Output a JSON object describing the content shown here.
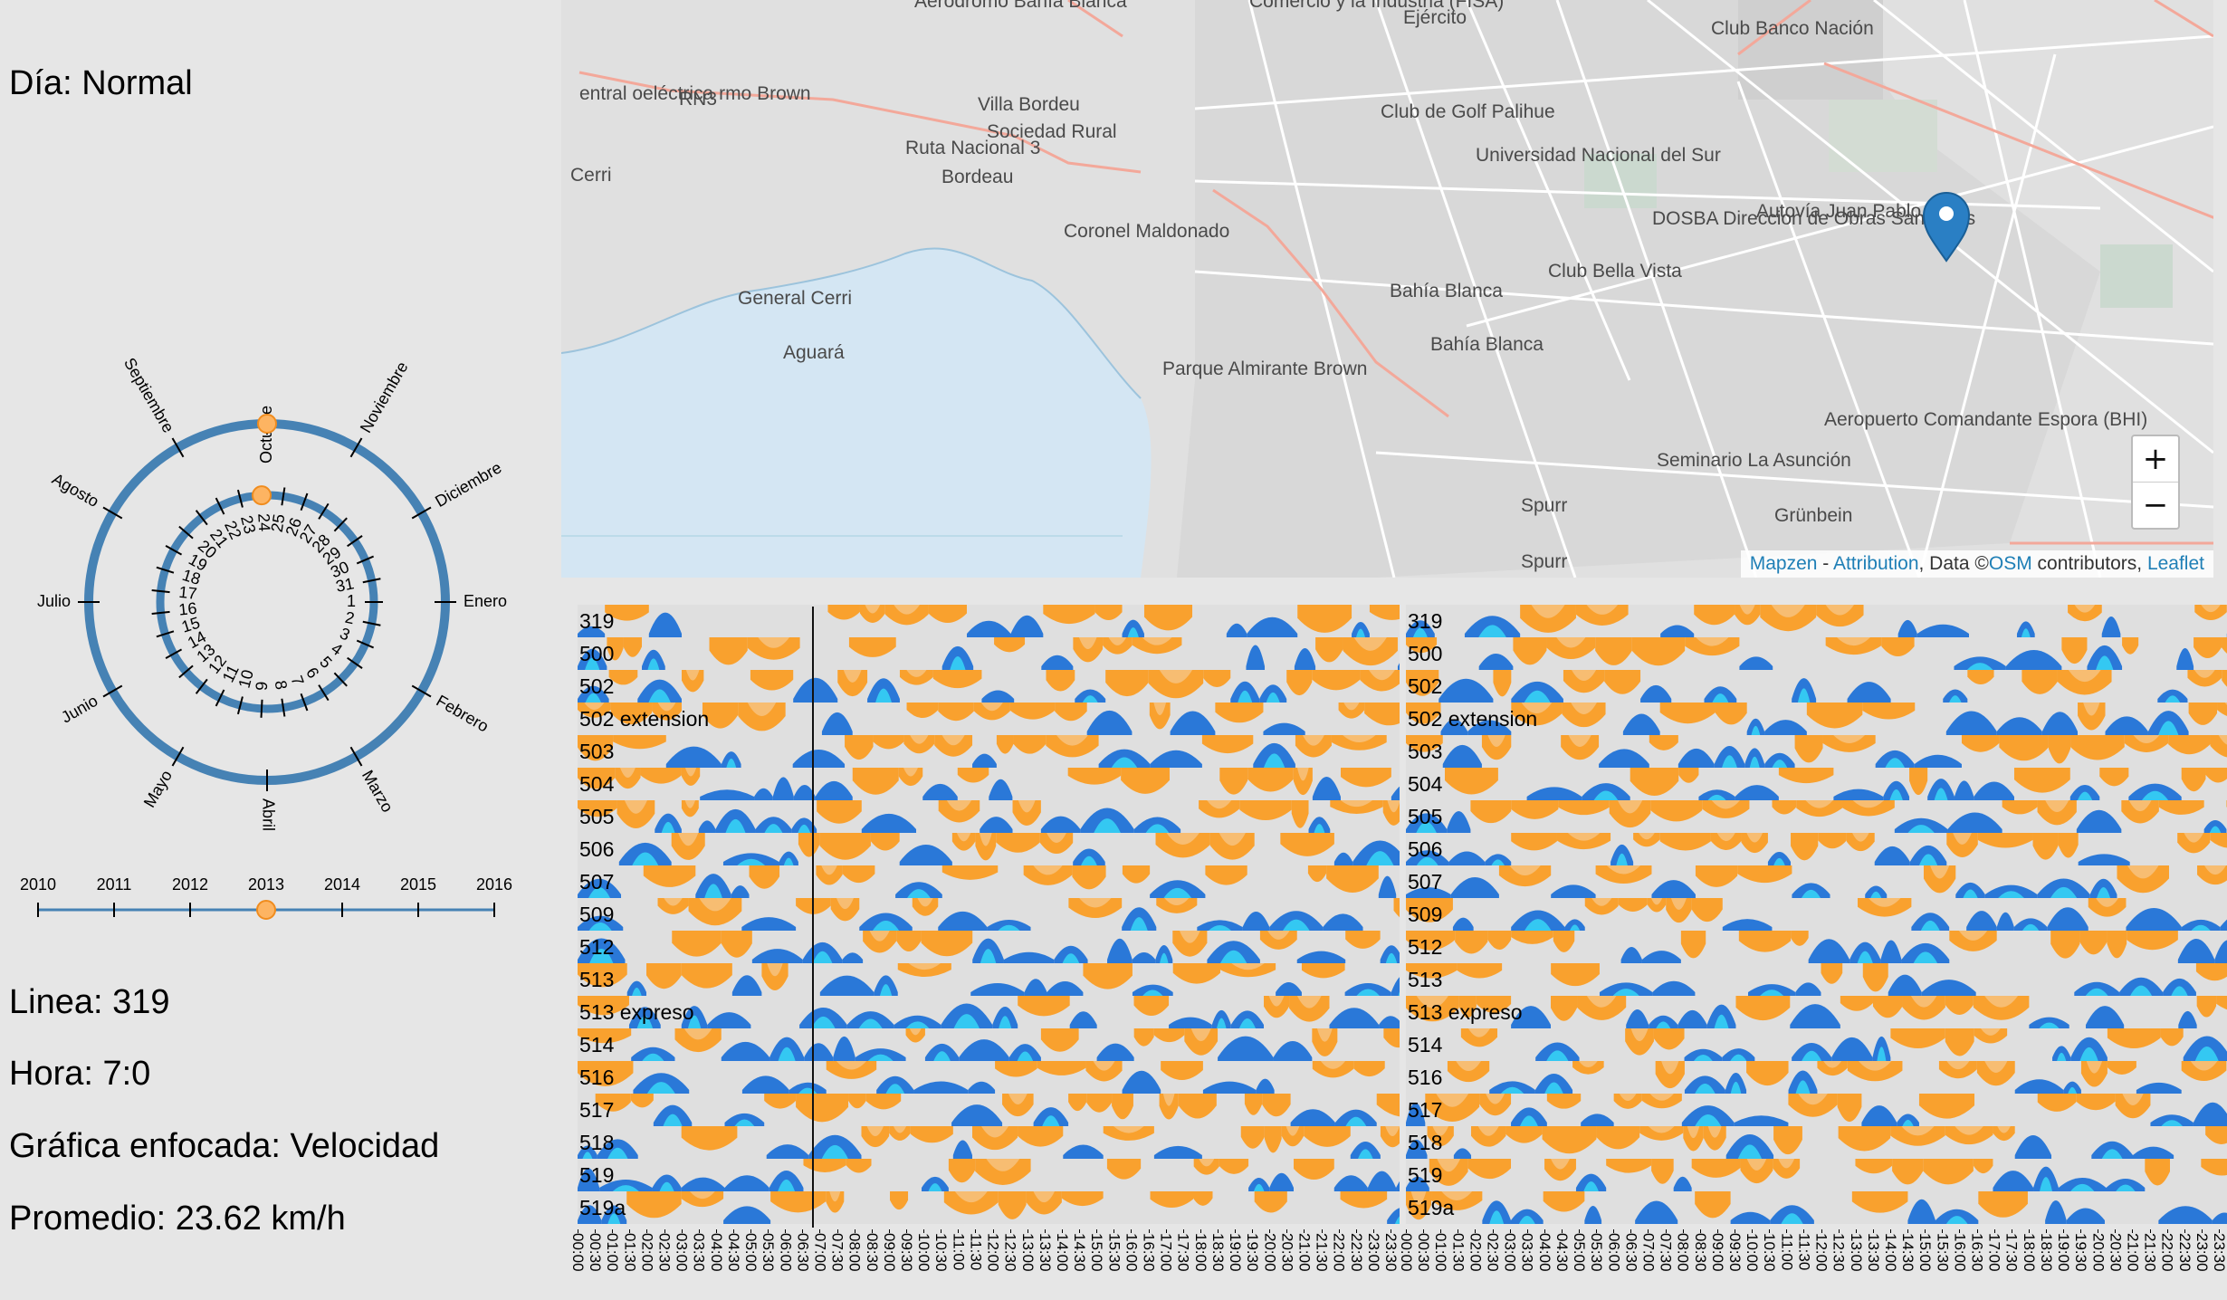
{
  "info": {
    "dia": "Día: Normal",
    "linea": "Linea: 319",
    "hora": "Hora: 7:0",
    "grafica": "Gráfica enfocada: Velocidad",
    "promedio": "Promedio: 23.62 km/h"
  },
  "calendar": {
    "months": [
      "Enero",
      "Febrero",
      "Marzo",
      "Abril",
      "Mayo",
      "Junio",
      "Julio",
      "Agosto",
      "Septiembre",
      "Octubre",
      "Noviembre",
      "Diciembre"
    ],
    "selected_month": "Octubre",
    "days": [
      "1",
      "2",
      "3",
      "4",
      "5",
      "6",
      "7",
      "8",
      "9",
      "10",
      "11",
      "12",
      "13",
      "14",
      "15",
      "16",
      "17",
      "18",
      "19",
      "20",
      "21",
      "22",
      "23",
      "24",
      "25",
      "26",
      "27",
      "28",
      "29",
      "30",
      "31"
    ],
    "selected_day": "24",
    "ring_color": "#4682b4",
    "handle_color": "#fdb462"
  },
  "years": {
    "labels": [
      "2010",
      "2011",
      "2012",
      "2013",
      "2014",
      "2015",
      "2016"
    ],
    "selected": "2013"
  },
  "map": {
    "labels": [
      "Aeródromo Bahía Blanca",
      "Comercio y la Industria (FISA)",
      "Ejército",
      "Club Banco Nación",
      "entral oeléctrica rmo Brown",
      "RN3",
      "Ruta Nacional 3",
      "Villa Bordeu",
      "Sociedad Rural",
      "Bordeau",
      "Club de Golf Palihue",
      "Universidad Nacional del Sur",
      "Autovía Juan Pablo II",
      "Cerri",
      "Coronel Maldonado",
      "DOSBA Direccion de Obras Sanitarias",
      "Bahía Blanca",
      "Club Bella Vista",
      "General Cerri",
      "Aguará",
      "Bahía Blanca",
      "Parque Almirante Brown",
      "Aeropuerto Comandante Espora (BHI)",
      "Seminario La Asunción",
      "Spurr",
      "Spurr",
      "Grünbein"
    ],
    "zoom_in": "+",
    "zoom_out": "−",
    "attribution": {
      "mapzen": "Mapzen",
      "sep": " - ",
      "attr": "Attribution",
      "data_text": ", Data ©",
      "osm": "OSM",
      "contrib": " contributors, ",
      "leaflet": "Leaflet"
    }
  },
  "lines": [
    "319",
    "500",
    "502",
    "502 extension",
    "503",
    "504",
    "505",
    "506",
    "507",
    "509",
    "512",
    "513",
    "513 expreso",
    "514",
    "516",
    "517",
    "518",
    "519",
    "519a"
  ],
  "times": [
    "00:00",
    "00:30",
    "01:00",
    "01:30",
    "02:00",
    "02:30",
    "03:00",
    "03:30",
    "04:00",
    "04:30",
    "05:00",
    "05:30",
    "06:00",
    "06:30",
    "07:00",
    "07:30",
    "08:00",
    "08:30",
    "09:00",
    "09:30",
    "10:00",
    "10:30",
    "11:00",
    "11:30",
    "12:00",
    "12:30",
    "13:00",
    "13:30",
    "14:00",
    "14:30",
    "15:00",
    "15:30",
    "16:00",
    "16:30",
    "17:00",
    "17:30",
    "18:00",
    "18:30",
    "19:00",
    "19:30",
    "20:00",
    "20:30",
    "21:00",
    "21:30",
    "22:00",
    "22:30",
    "23:00",
    "23:30"
  ],
  "colors": {
    "orange": "#f9a12e",
    "light_orange": "#f7bd72",
    "blue": "#2a78d8",
    "cyan": "#34c8f2",
    "row_bg": "#dfdfdf"
  }
}
